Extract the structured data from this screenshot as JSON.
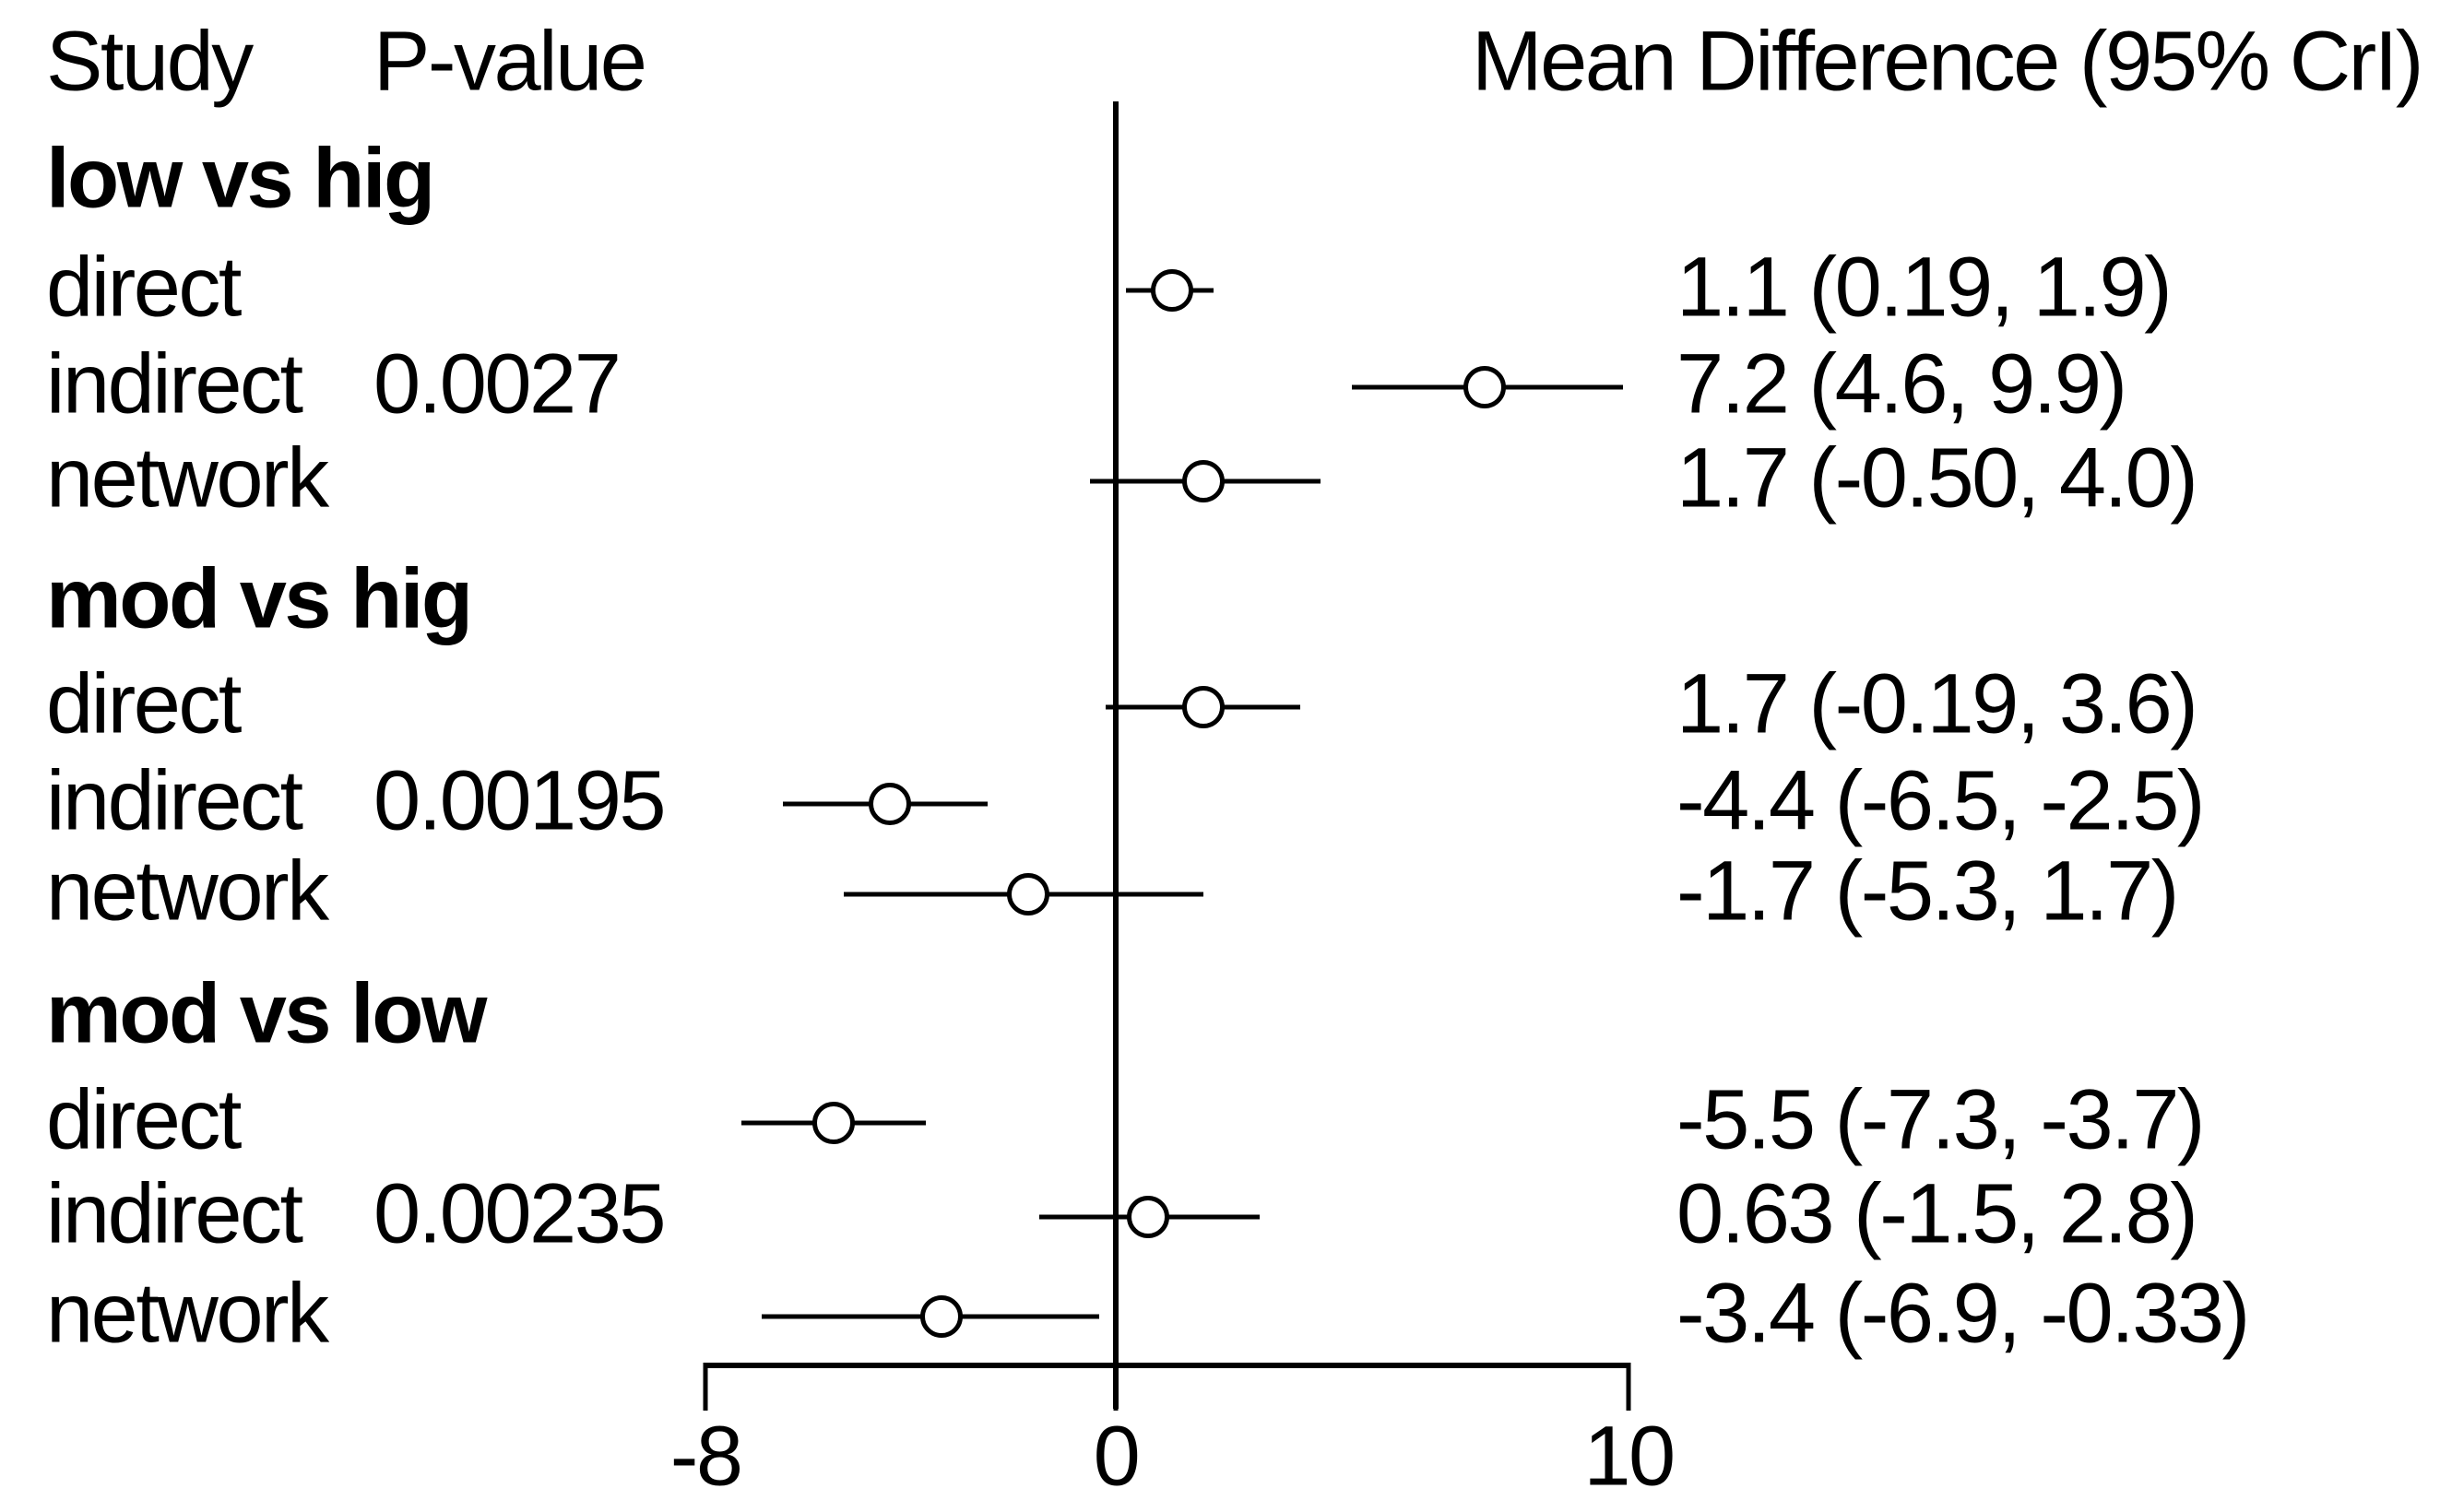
{
  "header": {
    "study_label": "Study",
    "pvalue_label": "P-value",
    "estimate_label": "Mean Difference (95% CrI)"
  },
  "chart_data": {
    "type": "forest",
    "title": "Mean Difference (95% CrI)",
    "x_axis": {
      "ticks": [
        -8,
        0,
        10
      ],
      "tick_labels": [
        "-8",
        "0",
        "10"
      ],
      "xlim": [
        -8,
        10
      ],
      "zero_reference_line": 0
    },
    "legend_position": "none",
    "grid": false,
    "groups": [
      {
        "label": "low vs hig",
        "rows": [
          {
            "label": "direct",
            "pvalue": "",
            "mean": 1.1,
            "ci_low": 0.19,
            "ci_high": 1.9,
            "estimate_text": "1.1 (0.19, 1.9)"
          },
          {
            "label": "indirect",
            "pvalue": "0.0027",
            "mean": 7.2,
            "ci_low": 4.6,
            "ci_high": 9.9,
            "estimate_text": "7.2 (4.6, 9.9)"
          },
          {
            "label": "network",
            "pvalue": "",
            "mean": 1.7,
            "ci_low": -0.5,
            "ci_high": 4.0,
            "estimate_text": "1.7 (-0.50, 4.0)"
          }
        ]
      },
      {
        "label": "mod vs hig",
        "rows": [
          {
            "label": "direct",
            "pvalue": "",
            "mean": 1.7,
            "ci_low": -0.19,
            "ci_high": 3.6,
            "estimate_text": "1.7 (-0.19, 3.6)"
          },
          {
            "label": "indirect",
            "pvalue": "0.00195",
            "mean": -4.4,
            "ci_low": -6.5,
            "ci_high": -2.5,
            "estimate_text": "-4.4 (-6.5, -2.5)"
          },
          {
            "label": "network",
            "pvalue": "",
            "mean": -1.7,
            "ci_low": -5.3,
            "ci_high": 1.7,
            "estimate_text": "-1.7 (-5.3, 1.7)"
          }
        ]
      },
      {
        "label": "mod vs low",
        "rows": [
          {
            "label": "direct",
            "pvalue": "",
            "mean": -5.5,
            "ci_low": -7.3,
            "ci_high": -3.7,
            "estimate_text": "-5.5 (-7.3, -3.7)"
          },
          {
            "label": "indirect",
            "pvalue": "0.00235",
            "mean": 0.63,
            "ci_low": -1.5,
            "ci_high": 2.8,
            "estimate_text": "0.63 (-1.5, 2.8)"
          },
          {
            "label": "network",
            "pvalue": "",
            "mean": -3.4,
            "ci_low": -6.9,
            "ci_high": -0.33,
            "estimate_text": "-3.4 (-6.9, -0.33)"
          }
        ]
      }
    ],
    "colors": {
      "foreground": "#000000",
      "background": "#ffffff"
    }
  }
}
